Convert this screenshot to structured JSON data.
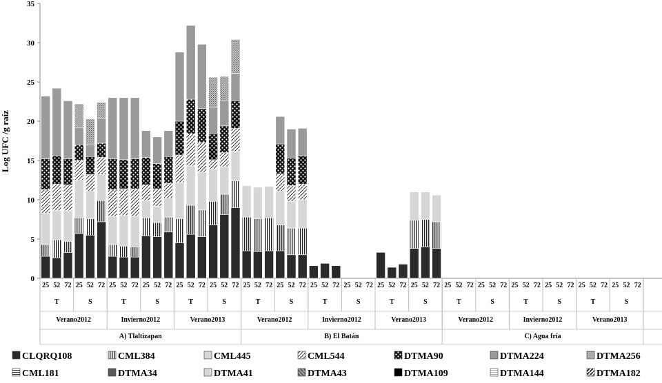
{
  "chart_data": {
    "type": "bar",
    "stacked": true,
    "ylabel": "Log UFC /g raíz",
    "ylim": [
      0,
      35
    ],
    "yticks": [
      "0",
      "5",
      "10",
      "15",
      "20",
      "25",
      "30",
      "35"
    ],
    "regions": [
      {
        "label": "A) Tlaltizapan",
        "seasons": [
          {
            "label": "Verano2012",
            "groups": [
              {
                "label": "T",
                "bars": [
                  {
                    "x": "25",
                    "segments": [
                      2.8,
                      1.5,
                      4.0,
                      3.0,
                      3.9,
                      8.0
                    ]
                  },
                  {
                    "x": "52",
                    "segments": [
                      2.6,
                      2.3,
                      3.7,
                      3.4,
                      3.6,
                      8.6
                    ]
                  },
                  {
                    "x": "72",
                    "segments": [
                      3.3,
                      1.4,
                      3.9,
                      3.3,
                      3.3,
                      7.4
                    ]
                  }
                ]
              },
              {
                "label": "S",
                "bars": [
                  {
                    "x": "25",
                    "segments": [
                      5.7,
                      2.0,
                      4.8,
                      2.5,
                      2.0,
                      2.2,
                      3.0
                    ]
                  },
                  {
                    "x": "52",
                    "segments": [
                      5.5,
                      2.1,
                      3.5,
                      2.1,
                      2.3,
                      1.5,
                      3.3
                    ]
                  },
                  {
                    "x": "72",
                    "segments": [
                      7.2,
                      2.7,
                      3.3,
                      2.2,
                      1.8,
                      3.2,
                      2.0
                    ]
                  }
                ]
              }
            ]
          },
          {
            "label": "Invierno2012",
            "groups": [
              {
                "label": "T",
                "bars": [
                  {
                    "x": "25",
                    "segments": [
                      2.8,
                      1.5,
                      3.6,
                      3.4,
                      3.9,
                      7.8
                    ]
                  },
                  {
                    "x": "52",
                    "segments": [
                      2.7,
                      1.4,
                      3.9,
                      3.4,
                      3.7,
                      7.9
                    ]
                  },
                  {
                    "x": "72",
                    "segments": [
                      2.7,
                      1.3,
                      3.9,
                      3.5,
                      3.8,
                      7.8
                    ]
                  }
                ]
              },
              {
                "label": "S",
                "bars": [
                  {
                    "x": "25",
                    "segments": [
                      5.4,
                      2.3,
                      2.2,
                      2.0,
                      3.5,
                      3.4
                    ]
                  },
                  {
                    "x": "52",
                    "segments": [
                      5.3,
                      1.8,
                      2.1,
                      2.2,
                      3.2,
                      3.4
                    ]
                  },
                  {
                    "x": "72",
                    "segments": [
                      5.9,
                      1.9,
                      2.4,
                      1.9,
                      3.4,
                      3.3
                    ]
                  }
                ]
              }
            ]
          },
          {
            "label": "Verano2013",
            "groups": [
              {
                "label": "T",
                "bars": [
                  {
                    "x": "25",
                    "segments": [
                      4.5,
                      3.1,
                      4.6,
                      3.5,
                      4.3,
                      8.8
                    ]
                  },
                  {
                    "x": "52",
                    "segments": [
                      5.6,
                      3.7,
                      5.0,
                      4.1,
                      4.4,
                      9.4
                    ]
                  },
                  {
                    "x": "72",
                    "segments": [
                      5.3,
                      3.4,
                      4.8,
                      3.8,
                      4.3,
                      8.2
                    ]
                  }
                ]
              },
              {
                "label": "S",
                "bars": [
                  {
                    "x": "25",
                    "segments": [
                      6.8,
                      3.0,
                      4.1,
                      1.2,
                      3.3,
                      3.4,
                      3.8
                    ]
                  },
                  {
                    "x": "52",
                    "segments": [
                      8.1,
                      2.6,
                      3.5,
                      1.8,
                      3.4,
                      3.3,
                      3.0
                    ]
                  },
                  {
                    "x": "72",
                    "segments": [
                      9.0,
                      3.4,
                      3.8,
                      2.9,
                      3.5,
                      3.5,
                      4.3
                    ]
                  }
                ]
              }
            ]
          }
        ]
      },
      {
        "label": "B) El Batán",
        "seasons": [
          {
            "label": "Verano2012",
            "groups": [
              {
                "label": "T",
                "bars": [
                  {
                    "x": "25",
                    "segments": [
                      3.5,
                      4.3,
                      4.0
                    ]
                  },
                  {
                    "x": "52",
                    "segments": [
                      3.4,
                      4.2,
                      4.0
                    ]
                  },
                  {
                    "x": "72",
                    "segments": [
                      3.5,
                      4.2,
                      4.0
                    ]
                  }
                ]
              },
              {
                "label": "S",
                "bars": [
                  {
                    "x": "25",
                    "segments": [
                      3.5,
                      3.3,
                      4.3,
                      2.2,
                      3.8,
                      3.5
                    ]
                  },
                  {
                    "x": "52",
                    "segments": [
                      3.0,
                      3.4,
                      3.4,
                      2.0,
                      3.5,
                      3.7
                    ]
                  },
                  {
                    "x": "72",
                    "segments": [
                      3.0,
                      3.4,
                      3.6,
                      2.0,
                      3.6,
                      3.5
                    ]
                  }
                ]
              }
            ]
          },
          {
            "label": "Invierno2012",
            "groups": [
              {
                "label": "T",
                "bars": [
                  {
                    "x": "25",
                    "segments": [
                      1.6
                    ]
                  },
                  {
                    "x": "52",
                    "segments": [
                      1.9
                    ]
                  },
                  {
                    "x": "72",
                    "segments": [
                      1.6
                    ]
                  }
                ]
              },
              {
                "label": "S",
                "bars": [
                  {
                    "x": "25",
                    "segments": []
                  },
                  {
                    "x": "52",
                    "segments": []
                  },
                  {
                    "x": "72",
                    "segments": []
                  }
                ]
              }
            ]
          },
          {
            "label": "Verano2013",
            "groups": [
              {
                "label": "T",
                "bars": [
                  {
                    "x": "25",
                    "segments": [
                      3.3
                    ]
                  },
                  {
                    "x": "52",
                    "segments": [
                      1.4
                    ]
                  },
                  {
                    "x": "72",
                    "segments": [
                      1.8
                    ]
                  }
                ]
              },
              {
                "label": "S",
                "bars": [
                  {
                    "x": "25",
                    "segments": [
                      3.8,
                      3.6,
                      3.6
                    ]
                  },
                  {
                    "x": "52",
                    "segments": [
                      4.0,
                      3.5,
                      3.5
                    ]
                  },
                  {
                    "x": "72",
                    "segments": [
                      3.8,
                      3.4,
                      3.4
                    ]
                  }
                ]
              }
            ]
          }
        ]
      },
      {
        "label": "C) Agua fría",
        "seasons": [
          {
            "label": "Verano2012",
            "groups": [
              {
                "label": "T",
                "bars": [
                  {
                    "x": "25",
                    "segments": []
                  },
                  {
                    "x": "52",
                    "segments": []
                  },
                  {
                    "x": "72",
                    "segments": []
                  }
                ]
              },
              {
                "label": "S",
                "bars": [
                  {
                    "x": "25",
                    "segments": []
                  },
                  {
                    "x": "52",
                    "segments": []
                  },
                  {
                    "x": "72",
                    "segments": []
                  }
                ]
              }
            ]
          },
          {
            "label": "Invierno2012",
            "groups": [
              {
                "label": "T",
                "bars": [
                  {
                    "x": "25",
                    "segments": []
                  },
                  {
                    "x": "52",
                    "segments": []
                  },
                  {
                    "x": "72",
                    "segments": []
                  }
                ]
              },
              {
                "label": "S",
                "bars": [
                  {
                    "x": "25",
                    "segments": []
                  },
                  {
                    "x": "52",
                    "segments": []
                  },
                  {
                    "x": "72",
                    "segments": []
                  }
                ]
              }
            ]
          },
          {
            "label": "Verano2013",
            "groups": [
              {
                "label": "T",
                "bars": [
                  {
                    "x": "25",
                    "segments": []
                  },
                  {
                    "x": "52",
                    "segments": []
                  },
                  {
                    "x": "72",
                    "segments": []
                  }
                ]
              },
              {
                "label": "S",
                "bars": [
                  {
                    "x": "25",
                    "segments": []
                  },
                  {
                    "x": "52",
                    "segments": []
                  },
                  {
                    "x": "72",
                    "segments": []
                  }
                ]
              }
            ]
          }
        ]
      }
    ],
    "segment_styles": [
      "p0",
      "p1",
      "p2",
      "p3",
      "p4",
      "p5",
      "p6",
      "p7",
      "p8"
    ],
    "legend": [
      {
        "label": "CLQRQ108",
        "pattern": "p0"
      },
      {
        "label": "CML384",
        "pattern": "p1"
      },
      {
        "label": "CML445",
        "pattern": "p2"
      },
      {
        "label": "CML544",
        "pattern": "p3"
      },
      {
        "label": "DTMA90",
        "pattern": "p4"
      },
      {
        "label": "DTMA224",
        "pattern": "p5"
      },
      {
        "label": "DTMA256",
        "pattern": "p6"
      },
      {
        "label": "CML181",
        "pattern": "p7"
      },
      {
        "label": "DTMA34",
        "pattern": "p8"
      },
      {
        "label": "DTMA41",
        "pattern": "p2"
      },
      {
        "label": "DTMA43",
        "pattern": "p9"
      },
      {
        "label": "DTMA109",
        "pattern": "p10"
      },
      {
        "label": "DTMA144",
        "pattern": "p11"
      },
      {
        "label": "DTMA182",
        "pattern": "p12"
      }
    ]
  }
}
